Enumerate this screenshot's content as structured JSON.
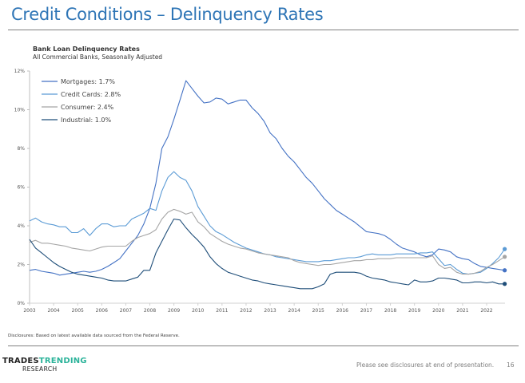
{
  "header": {
    "title": "Credit Conditions – Delinquency Rates"
  },
  "footer": {
    "disclosure": "Disclosures: Based on latest available data sourced from the Federal Reserve.",
    "logo_line1_a": "TRADES",
    "logo_line1_b": "TRENDING",
    "logo_line2": "RESEARCH",
    "note": "Please see disclosures at end of presentation.",
    "page_number": "16"
  },
  "chart_data": {
    "type": "line",
    "title": "Bank Loan Delinquency Rates",
    "subtitle": "All Commercial Banks, Seasonally Adjusted",
    "xlabel": "",
    "ylabel": "",
    "xlim": [
      2003,
      2022.9
    ],
    "ylim": [
      0,
      12
    ],
    "yticks": [
      0,
      2,
      4,
      6,
      8,
      10,
      12
    ],
    "ytick_labels": [
      "0%",
      "2%",
      "4%",
      "6%",
      "8%",
      "10%",
      "12%"
    ],
    "xticks": [
      2003,
      2004,
      2005,
      2006,
      2007,
      2008,
      2009,
      2010,
      2011,
      2012,
      2013,
      2014,
      2015,
      2016,
      2017,
      2018,
      2019,
      2020,
      2021,
      2022
    ],
    "xtick_labels": [
      "2003",
      "2004",
      "2005",
      "2006",
      "2007",
      "2008",
      "2009",
      "2010",
      "2011",
      "2012",
      "2013",
      "2014",
      "2015",
      "2016",
      "2017",
      "2018",
      "2019",
      "2020",
      "2021",
      "2022"
    ],
    "grid": false,
    "legend_position": "top-left",
    "series": [
      {
        "name": "Mortgages",
        "legend_label": "Mortgages: 1.7%",
        "color": "#4472C4",
        "end_marker": true,
        "x": [
          2003,
          2003.25,
          2003.5,
          2003.75,
          2004,
          2004.25,
          2004.5,
          2004.75,
          2005,
          2005.25,
          2005.5,
          2005.75,
          2006,
          2006.25,
          2006.5,
          2006.75,
          2007,
          2007.25,
          2007.5,
          2007.75,
          2008,
          2008.25,
          2008.5,
          2008.75,
          2009,
          2009.25,
          2009.5,
          2009.75,
          2010,
          2010.25,
          2010.5,
          2010.75,
          2011,
          2011.25,
          2011.5,
          2011.75,
          2012,
          2012.25,
          2012.5,
          2012.75,
          2013,
          2013.25,
          2013.5,
          2013.75,
          2014,
          2014.25,
          2014.5,
          2014.75,
          2015,
          2015.25,
          2015.5,
          2015.75,
          2016,
          2016.25,
          2016.5,
          2016.75,
          2017,
          2017.25,
          2017.5,
          2017.75,
          2018,
          2018.25,
          2018.5,
          2018.75,
          2019,
          2019.25,
          2019.5,
          2019.75,
          2020,
          2020.25,
          2020.5,
          2020.75,
          2021,
          2021.25,
          2021.5,
          2021.75,
          2022,
          2022.25,
          2022.5,
          2022.75
        ],
        "y": [
          1.7,
          1.75,
          1.65,
          1.6,
          1.55,
          1.45,
          1.5,
          1.55,
          1.6,
          1.65,
          1.6,
          1.65,
          1.75,
          1.9,
          2.1,
          2.3,
          2.7,
          3.1,
          3.5,
          4.1,
          4.9,
          6.2,
          8.0,
          8.6,
          9.5,
          10.5,
          11.5,
          11.1,
          10.7,
          10.35,
          10.4,
          10.6,
          10.55,
          10.3,
          10.4,
          10.5,
          10.5,
          10.1,
          9.8,
          9.4,
          8.8,
          8.5,
          8.0,
          7.6,
          7.3,
          6.9,
          6.5,
          6.2,
          5.8,
          5.4,
          5.1,
          4.8,
          4.6,
          4.4,
          4.2,
          3.95,
          3.7,
          3.65,
          3.6,
          3.5,
          3.3,
          3.05,
          2.85,
          2.75,
          2.65,
          2.5,
          2.4,
          2.5,
          2.8,
          2.75,
          2.65,
          2.4,
          2.3,
          2.25,
          2.05,
          1.9,
          1.85,
          1.8,
          1.75,
          1.7
        ]
      },
      {
        "name": "Credit Cards",
        "legend_label": "Credit Cards: 2.8%",
        "color": "#5B9BD5",
        "end_marker": true,
        "x": [
          2003,
          2003.25,
          2003.5,
          2003.75,
          2004,
          2004.25,
          2004.5,
          2004.75,
          2005,
          2005.25,
          2005.5,
          2005.75,
          2006,
          2006.25,
          2006.5,
          2006.75,
          2007,
          2007.25,
          2007.5,
          2007.75,
          2008,
          2008.25,
          2008.5,
          2008.75,
          2009,
          2009.25,
          2009.5,
          2009.75,
          2010,
          2010.25,
          2010.5,
          2010.75,
          2011,
          2011.25,
          2011.5,
          2011.75,
          2012,
          2012.25,
          2012.5,
          2012.75,
          2013,
          2013.25,
          2013.5,
          2013.75,
          2014,
          2014.25,
          2014.5,
          2014.75,
          2015,
          2015.25,
          2015.5,
          2015.75,
          2016,
          2016.25,
          2016.5,
          2016.75,
          2017,
          2017.25,
          2017.5,
          2017.75,
          2018,
          2018.25,
          2018.5,
          2018.75,
          2019,
          2019.25,
          2019.5,
          2019.75,
          2020,
          2020.25,
          2020.5,
          2020.75,
          2021,
          2021.25,
          2021.5,
          2021.75,
          2022,
          2022.25,
          2022.5,
          2022.75
        ],
        "y": [
          4.25,
          4.4,
          4.2,
          4.1,
          4.05,
          3.95,
          3.95,
          3.65,
          3.65,
          3.85,
          3.5,
          3.85,
          4.1,
          4.1,
          3.95,
          4.0,
          4.0,
          4.35,
          4.5,
          4.65,
          4.9,
          4.8,
          5.8,
          6.5,
          6.8,
          6.5,
          6.35,
          5.8,
          5.0,
          4.5,
          4.0,
          3.7,
          3.55,
          3.35,
          3.15,
          3.0,
          2.85,
          2.75,
          2.65,
          2.55,
          2.5,
          2.4,
          2.35,
          2.3,
          2.25,
          2.2,
          2.15,
          2.15,
          2.15,
          2.2,
          2.2,
          2.25,
          2.3,
          2.35,
          2.35,
          2.4,
          2.5,
          2.55,
          2.5,
          2.5,
          2.5,
          2.55,
          2.55,
          2.55,
          2.55,
          2.6,
          2.6,
          2.65,
          2.3,
          1.95,
          2.0,
          1.75,
          1.55,
          1.5,
          1.55,
          1.6,
          1.8,
          2.05,
          2.35,
          2.8
        ]
      },
      {
        "name": "Consumer",
        "legend_label": "Consumer: 2.4%",
        "color": "#A5A5A5",
        "end_marker": true,
        "x": [
          2003,
          2003.25,
          2003.5,
          2003.75,
          2004,
          2004.25,
          2004.5,
          2004.75,
          2005,
          2005.25,
          2005.5,
          2005.75,
          2006,
          2006.25,
          2006.5,
          2006.75,
          2007,
          2007.25,
          2007.5,
          2007.75,
          2008,
          2008.25,
          2008.5,
          2008.75,
          2009,
          2009.25,
          2009.5,
          2009.75,
          2010,
          2010.25,
          2010.5,
          2010.75,
          2011,
          2011.25,
          2011.5,
          2011.75,
          2012,
          2012.25,
          2012.5,
          2012.75,
          2013,
          2013.25,
          2013.5,
          2013.75,
          2014,
          2014.25,
          2014.5,
          2014.75,
          2015,
          2015.25,
          2015.5,
          2015.75,
          2016,
          2016.25,
          2016.5,
          2016.75,
          2017,
          2017.25,
          2017.5,
          2017.75,
          2018,
          2018.25,
          2018.5,
          2018.75,
          2019,
          2019.25,
          2019.5,
          2019.75,
          2020,
          2020.25,
          2020.5,
          2020.75,
          2021,
          2021.25,
          2021.5,
          2021.75,
          2022,
          2022.25,
          2022.5,
          2022.75
        ],
        "y": [
          3.15,
          3.25,
          3.1,
          3.1,
          3.05,
          3.0,
          2.95,
          2.85,
          2.8,
          2.75,
          2.7,
          2.8,
          2.9,
          2.95,
          2.95,
          2.95,
          2.95,
          3.2,
          3.4,
          3.5,
          3.6,
          3.8,
          4.35,
          4.7,
          4.85,
          4.75,
          4.6,
          4.7,
          4.2,
          3.95,
          3.6,
          3.4,
          3.2,
          3.05,
          2.95,
          2.85,
          2.8,
          2.7,
          2.6,
          2.55,
          2.5,
          2.45,
          2.4,
          2.35,
          2.2,
          2.1,
          2.05,
          2.0,
          1.95,
          2.0,
          2.0,
          2.05,
          2.1,
          2.15,
          2.2,
          2.2,
          2.25,
          2.25,
          2.3,
          2.3,
          2.3,
          2.35,
          2.35,
          2.35,
          2.35,
          2.35,
          2.35,
          2.45,
          2.0,
          1.8,
          1.85,
          1.6,
          1.5,
          1.5,
          1.55,
          1.65,
          1.85,
          2.0,
          2.2,
          2.4
        ]
      },
      {
        "name": "Industrial",
        "legend_label": "Industrial: 1.0%",
        "color": "#1F4E79",
        "end_marker": true,
        "x": [
          2003,
          2003.25,
          2003.5,
          2003.75,
          2004,
          2004.25,
          2004.5,
          2004.75,
          2005,
          2005.25,
          2005.5,
          2005.75,
          2006,
          2006.25,
          2006.5,
          2006.75,
          2007,
          2007.25,
          2007.5,
          2007.75,
          2008,
          2008.25,
          2008.5,
          2008.75,
          2009,
          2009.25,
          2009.5,
          2009.75,
          2010,
          2010.25,
          2010.5,
          2010.75,
          2011,
          2011.25,
          2011.5,
          2011.75,
          2012,
          2012.25,
          2012.5,
          2012.75,
          2013,
          2013.25,
          2013.5,
          2013.75,
          2014,
          2014.25,
          2014.5,
          2014.75,
          2015,
          2015.25,
          2015.5,
          2015.75,
          2016,
          2016.25,
          2016.5,
          2016.75,
          2017,
          2017.25,
          2017.5,
          2017.75,
          2018,
          2018.25,
          2018.5,
          2018.75,
          2019,
          2019.25,
          2019.5,
          2019.75,
          2020,
          2020.25,
          2020.5,
          2020.75,
          2021,
          2021.25,
          2021.5,
          2021.75,
          2022,
          2022.25,
          2022.5,
          2022.75
        ],
        "y": [
          3.3,
          2.85,
          2.6,
          2.35,
          2.1,
          1.9,
          1.75,
          1.6,
          1.5,
          1.45,
          1.4,
          1.35,
          1.3,
          1.2,
          1.15,
          1.15,
          1.15,
          1.25,
          1.35,
          1.7,
          1.7,
          2.6,
          3.2,
          3.8,
          4.35,
          4.3,
          3.9,
          3.55,
          3.25,
          2.9,
          2.4,
          2.05,
          1.8,
          1.6,
          1.5,
          1.4,
          1.3,
          1.2,
          1.15,
          1.05,
          1.0,
          0.95,
          0.9,
          0.85,
          0.8,
          0.75,
          0.75,
          0.75,
          0.85,
          1.0,
          1.5,
          1.6,
          1.6,
          1.6,
          1.6,
          1.55,
          1.4,
          1.3,
          1.25,
          1.2,
          1.1,
          1.05,
          1.0,
          0.95,
          1.2,
          1.1,
          1.1,
          1.15,
          1.3,
          1.3,
          1.25,
          1.2,
          1.05,
          1.05,
          1.1,
          1.1,
          1.05,
          1.1,
          1.0,
          1.0
        ]
      }
    ]
  }
}
